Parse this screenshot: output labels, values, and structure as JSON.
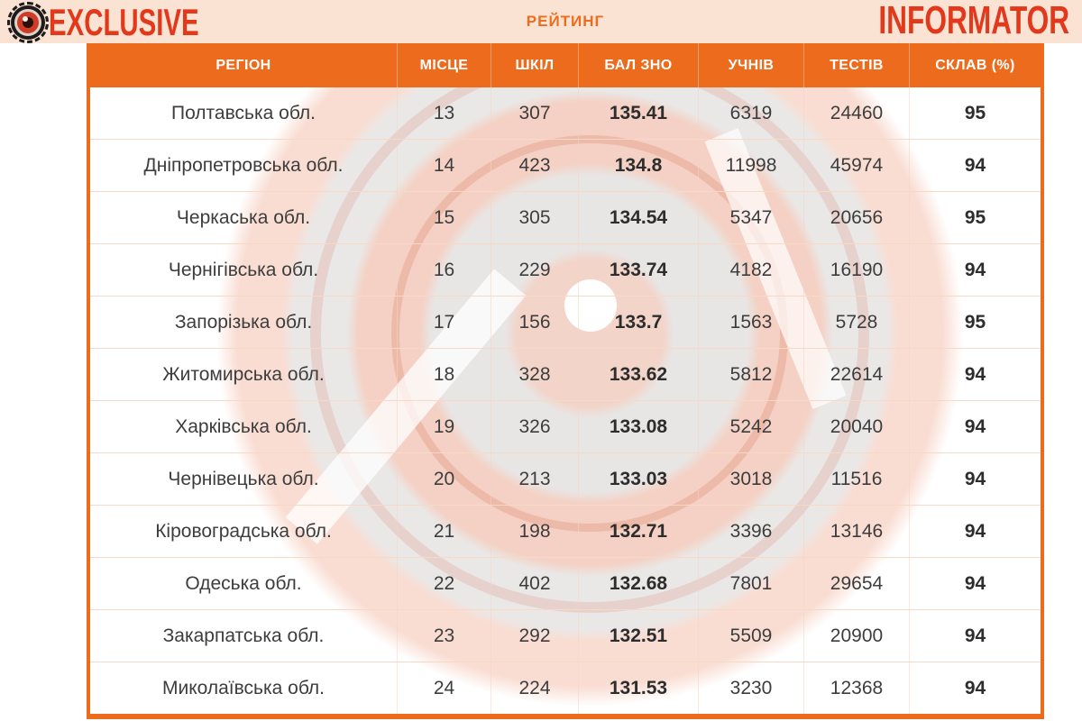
{
  "branding": {
    "exclusive": "EXCLUSIVE",
    "informator": "INFORMATOR"
  },
  "header": {
    "title": "РЕЙТИНГ"
  },
  "colors": {
    "accent_orange": "#EC6B1D",
    "banner_peach": "#FBE3D3",
    "logo_red": "#E2391D",
    "title_orange": "#ED6C1E",
    "row_divider": "#F7D9C5",
    "body_text": "#3D3D3D"
  },
  "chart_data": {
    "type": "table",
    "title": "РЕЙТИНГ",
    "columns": [
      {
        "label": "РЕГІОН",
        "field": "region"
      },
      {
        "label": "МІСЦЕ",
        "field": "place"
      },
      {
        "label": "ШКІЛ",
        "field": "schools"
      },
      {
        "label": "БАЛ ЗНО",
        "field": "score"
      },
      {
        "label": "УЧНІВ",
        "field": "students"
      },
      {
        "label": "ТЕСТІВ",
        "field": "tests"
      },
      {
        "label": "СКЛАВ (%)",
        "field": "passed"
      }
    ],
    "rows": [
      {
        "region": "Полтавська обл.",
        "place": "13",
        "schools": "307",
        "score": "135.41",
        "students": "6319",
        "tests": "24460",
        "passed": "95"
      },
      {
        "region": "Дніпропетровська обл.",
        "place": "14",
        "schools": "423",
        "score": "134.8",
        "students": "11998",
        "tests": "45974",
        "passed": "94"
      },
      {
        "region": "Черкаська обл.",
        "place": "15",
        "schools": "305",
        "score": "134.54",
        "students": "5347",
        "tests": "20656",
        "passed": "95"
      },
      {
        "region": "Чернігівська обл.",
        "place": "16",
        "schools": "229",
        "score": "133.74",
        "students": "4182",
        "tests": "16190",
        "passed": "94"
      },
      {
        "region": "Запорізька обл.",
        "place": "17",
        "schools": "156",
        "score": "133.7",
        "students": "1563",
        "tests": "5728",
        "passed": "95"
      },
      {
        "region": "Житомирська обл.",
        "place": "18",
        "schools": "328",
        "score": "133.62",
        "students": "5812",
        "tests": "22614",
        "passed": "94"
      },
      {
        "region": "Харківська обл.",
        "place": "19",
        "schools": "326",
        "score": "133.08",
        "students": "5242",
        "tests": "20040",
        "passed": "94"
      },
      {
        "region": "Чернівецька обл.",
        "place": "20",
        "schools": "213",
        "score": "133.03",
        "students": "3018",
        "tests": "11516",
        "passed": "94"
      },
      {
        "region": "Кіровоградська обл.",
        "place": "21",
        "schools": "198",
        "score": "132.71",
        "students": "3396",
        "tests": "13146",
        "passed": "94"
      },
      {
        "region": "Одеська обл.",
        "place": "22",
        "schools": "402",
        "score": "132.68",
        "students": "7801",
        "tests": "29654",
        "passed": "94"
      },
      {
        "region": "Закарпатська обл.",
        "place": "23",
        "schools": "292",
        "score": "132.51",
        "students": "5509",
        "tests": "20900",
        "passed": "94"
      },
      {
        "region": "Миколаївська обл.",
        "place": "24",
        "schools": "224",
        "score": "131.53",
        "students": "3230",
        "tests": "12368",
        "passed": "94"
      }
    ]
  }
}
